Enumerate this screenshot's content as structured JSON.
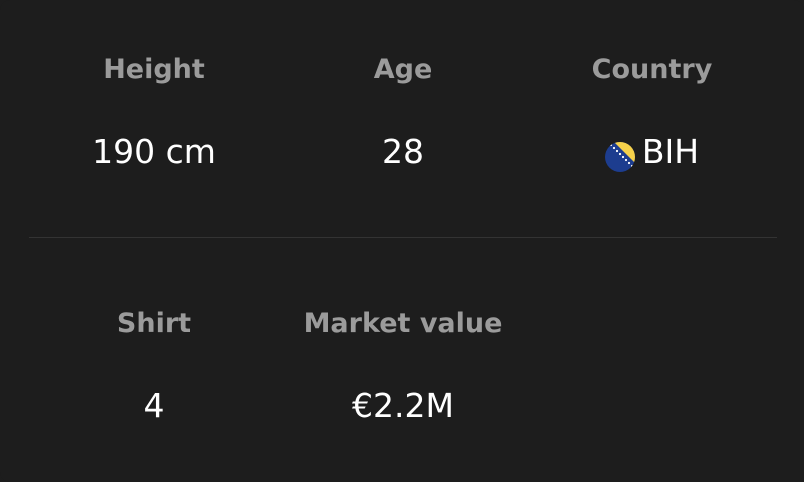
{
  "stats": {
    "height": {
      "label": "Height",
      "value": "190 cm"
    },
    "age": {
      "label": "Age",
      "value": "28"
    },
    "country": {
      "label": "Country",
      "value": "BIH",
      "flag_icon": "bosnia-herzegovina-flag-icon"
    },
    "shirt": {
      "label": "Shirt",
      "value": "4"
    },
    "market_value": {
      "label": "Market value",
      "value": "€2.2M"
    }
  },
  "colors": {
    "background": "#1d1d1d",
    "label": "#9b9b9b",
    "value": "#ffffff",
    "divider": "#333333",
    "flag_blue": "#1d3d8f",
    "flag_yellow": "#f6d14a"
  }
}
